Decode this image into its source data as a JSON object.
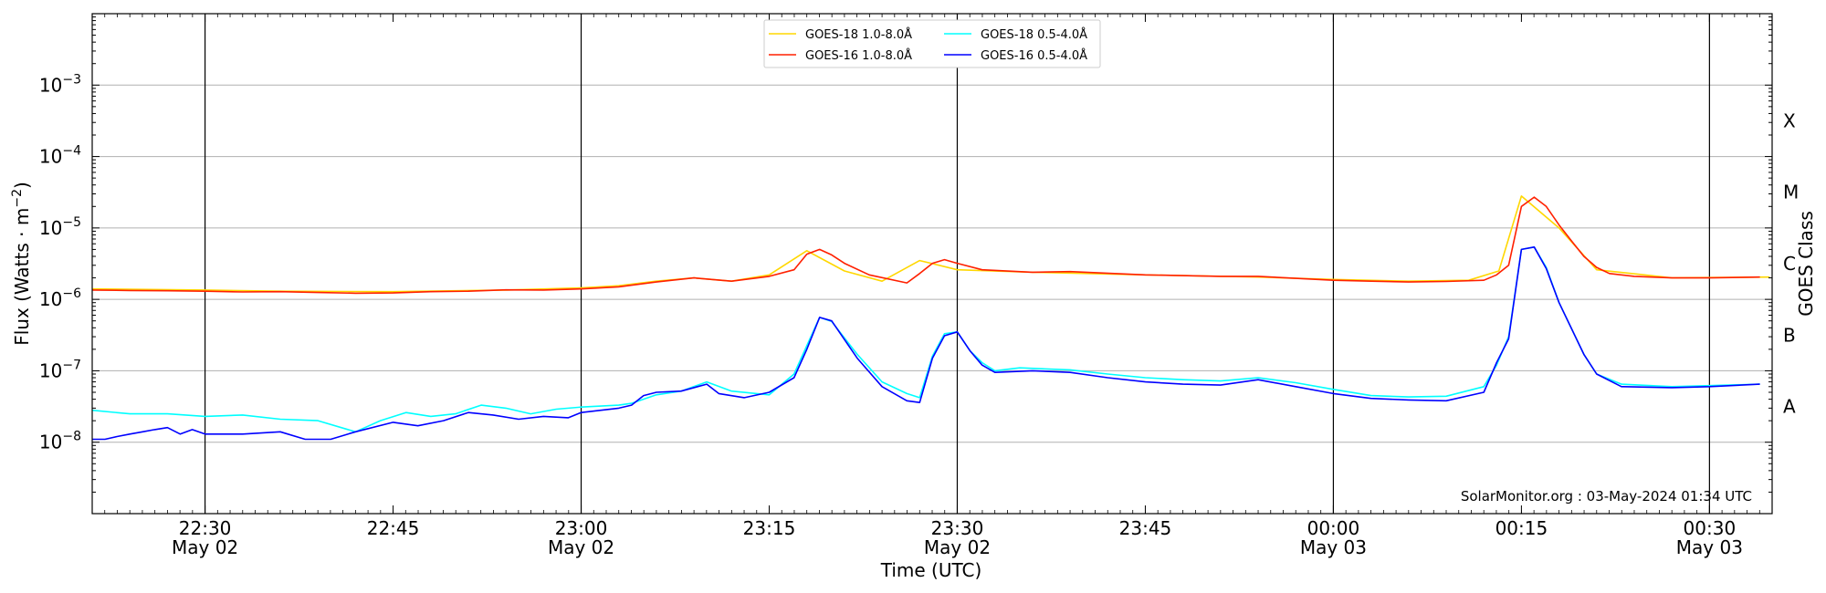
{
  "chart_data": {
    "type": "line",
    "xlabel": "Time (UTC)",
    "ylabel": "Flux (Watts · m",
    "ylabel_sup": "−2",
    "ylabel_close": ")",
    "right_label": "GOES Class",
    "footer": "SolarMonitor.org : 03-May-2024 01:34 UTC",
    "y_log": true,
    "ylim": [
      1e-09,
      0.01
    ],
    "xlim": [
      22.35,
      24.5833
    ],
    "grid": "horizontal",
    "legend_position": "top-center",
    "x_ticks": [
      {
        "t": 22.5,
        "l1": "22:30",
        "l2": "May 02",
        "vline": true
      },
      {
        "t": 22.75,
        "l1": "22:45",
        "l2": "",
        "vline": false
      },
      {
        "t": 23.0,
        "l1": "23:00",
        "l2": "May 02",
        "vline": true
      },
      {
        "t": 23.25,
        "l1": "23:15",
        "l2": "",
        "vline": false
      },
      {
        "t": 23.5,
        "l1": "23:30",
        "l2": "May 02",
        "vline": true
      },
      {
        "t": 23.75,
        "l1": "23:45",
        "l2": "",
        "vline": false
      },
      {
        "t": 24.0,
        "l1": "00:00",
        "l2": "May 03",
        "vline": true
      },
      {
        "t": 24.25,
        "l1": "00:15",
        "l2": "",
        "vline": false
      },
      {
        "t": 24.5,
        "l1": "00:30",
        "l2": "May 03",
        "vline": true
      }
    ],
    "y_ticks": [
      {
        "exp": -8,
        "label": "10",
        "sup": "−8"
      },
      {
        "exp": -7,
        "label": "10",
        "sup": "−7"
      },
      {
        "exp": -6,
        "label": "10",
        "sup": "−6"
      },
      {
        "exp": -5,
        "label": "10",
        "sup": "−5"
      },
      {
        "exp": -4,
        "label": "10",
        "sup": "−4"
      },
      {
        "exp": -3,
        "label": "10",
        "sup": "−3"
      }
    ],
    "classes": [
      {
        "label": "A",
        "exp": -7.5
      },
      {
        "label": "B",
        "exp": -6.5
      },
      {
        "label": "C",
        "exp": -5.5
      },
      {
        "label": "M",
        "exp": -4.5
      },
      {
        "label": "X",
        "exp": -3.5
      }
    ],
    "series": [
      {
        "name": "GOES-18 1.0-8.0Å",
        "color": "#ffd700",
        "points": [
          [
            22.35,
            1.4e-06
          ],
          [
            22.5,
            1.35e-06
          ],
          [
            22.6,
            1.3e-06
          ],
          [
            22.75,
            1.28e-06
          ],
          [
            22.9,
            1.35e-06
          ],
          [
            23.0,
            1.45e-06
          ],
          [
            23.05,
            1.55e-06
          ],
          [
            23.1,
            1.8e-06
          ],
          [
            23.15,
            2e-06
          ],
          [
            23.2,
            1.8e-06
          ],
          [
            23.25,
            2.2e-06
          ],
          [
            23.3,
            4.8e-06
          ],
          [
            23.35,
            2.5e-06
          ],
          [
            23.4,
            1.8e-06
          ],
          [
            23.45,
            3.5e-06
          ],
          [
            23.5,
            2.6e-06
          ],
          [
            23.6,
            2.4e-06
          ],
          [
            23.75,
            2.2e-06
          ],
          [
            23.9,
            2.05e-06
          ],
          [
            24.0,
            1.9e-06
          ],
          [
            24.1,
            1.8e-06
          ],
          [
            24.18,
            1.85e-06
          ],
          [
            24.22,
            2.5e-06
          ],
          [
            24.25,
            2.8e-05
          ],
          [
            24.3,
            1e-05
          ],
          [
            24.35,
            2.6e-06
          ],
          [
            24.45,
            2e-06
          ],
          [
            24.58,
            2.05e-06
          ]
        ]
      },
      {
        "name": "GOES-16 1.0-8.0Å",
        "color": "#ff2000",
        "points": [
          [
            22.35,
            1.35e-06
          ],
          [
            22.4,
            1.33e-06
          ],
          [
            22.45,
            1.32e-06
          ],
          [
            22.5,
            1.3e-06
          ],
          [
            22.55,
            1.27e-06
          ],
          [
            22.6,
            1.28e-06
          ],
          [
            22.65,
            1.25e-06
          ],
          [
            22.7,
            1.22e-06
          ],
          [
            22.75,
            1.23e-06
          ],
          [
            22.8,
            1.28e-06
          ],
          [
            22.85,
            1.3e-06
          ],
          [
            22.9,
            1.36e-06
          ],
          [
            22.95,
            1.35e-06
          ],
          [
            23.0,
            1.4e-06
          ],
          [
            23.05,
            1.5e-06
          ],
          [
            23.1,
            1.75e-06
          ],
          [
            23.15,
            2e-06
          ],
          [
            23.2,
            1.8e-06
          ],
          [
            23.25,
            2.1e-06
          ],
          [
            23.283,
            2.6e-06
          ],
          [
            23.3,
            4.3e-06
          ],
          [
            23.317,
            5e-06
          ],
          [
            23.333,
            4.2e-06
          ],
          [
            23.35,
            3.2e-06
          ],
          [
            23.383,
            2.2e-06
          ],
          [
            23.433,
            1.7e-06
          ],
          [
            23.45,
            2.3e-06
          ],
          [
            23.467,
            3.2e-06
          ],
          [
            23.483,
            3.6e-06
          ],
          [
            23.5,
            3.2e-06
          ],
          [
            23.533,
            2.6e-06
          ],
          [
            23.6,
            2.4e-06
          ],
          [
            23.65,
            2.45e-06
          ],
          [
            23.75,
            2.2e-06
          ],
          [
            23.85,
            2.1e-06
          ],
          [
            23.9,
            2.1e-06
          ],
          [
            24.0,
            1.85e-06
          ],
          [
            24.05,
            1.8e-06
          ],
          [
            24.1,
            1.75e-06
          ],
          [
            24.15,
            1.78e-06
          ],
          [
            24.2,
            1.85e-06
          ],
          [
            24.217,
            2.2e-06
          ],
          [
            24.233,
            3e-06
          ],
          [
            24.25,
            2e-05
          ],
          [
            24.267,
            2.7e-05
          ],
          [
            24.283,
            2e-05
          ],
          [
            24.3,
            1.1e-05
          ],
          [
            24.317,
            6.5e-06
          ],
          [
            24.333,
            4e-06
          ],
          [
            24.35,
            2.8e-06
          ],
          [
            24.367,
            2.3e-06
          ],
          [
            24.4,
            2.1e-06
          ],
          [
            24.45,
            2e-06
          ],
          [
            24.5,
            2e-06
          ],
          [
            24.567,
            2.05e-06
          ]
        ]
      },
      {
        "name": "GOES-18 0.5-4.0Å",
        "color": "#00ffff",
        "points": [
          [
            22.35,
            2.8e-08
          ],
          [
            22.4,
            2.5e-08
          ],
          [
            22.45,
            2.5e-08
          ],
          [
            22.5,
            2.3e-08
          ],
          [
            22.55,
            2.4e-08
          ],
          [
            22.6,
            2.1e-08
          ],
          [
            22.65,
            2e-08
          ],
          [
            22.7,
            1.4e-08
          ],
          [
            22.733,
            2e-08
          ],
          [
            22.767,
            2.6e-08
          ],
          [
            22.8,
            2.3e-08
          ],
          [
            22.833,
            2.5e-08
          ],
          [
            22.867,
            3.3e-08
          ],
          [
            22.9,
            3e-08
          ],
          [
            22.933,
            2.5e-08
          ],
          [
            22.967,
            2.9e-08
          ],
          [
            23.0,
            3.1e-08
          ],
          [
            23.05,
            3.3e-08
          ],
          [
            23.067,
            3.5e-08
          ],
          [
            23.1,
            4.6e-08
          ],
          [
            23.133,
            5.2e-08
          ],
          [
            23.167,
            7e-08
          ],
          [
            23.2,
            5.2e-08
          ],
          [
            23.25,
            4.6e-08
          ],
          [
            23.283,
            9e-08
          ],
          [
            23.317,
            5.6e-07
          ],
          [
            23.333,
            4.9e-07
          ],
          [
            23.367,
            1.7e-07
          ],
          [
            23.4,
            7e-08
          ],
          [
            23.433,
            4.8e-08
          ],
          [
            23.45,
            4.2e-08
          ],
          [
            23.467,
            1.6e-07
          ],
          [
            23.483,
            3.3e-07
          ],
          [
            23.5,
            3.5e-07
          ],
          [
            23.517,
            1.9e-07
          ],
          [
            23.533,
            1.3e-07
          ],
          [
            23.55,
            1e-07
          ],
          [
            23.583,
            1.1e-07
          ],
          [
            23.65,
            1.03e-07
          ],
          [
            23.7,
            9e-08
          ],
          [
            23.75,
            8e-08
          ],
          [
            23.8,
            7.5e-08
          ],
          [
            23.85,
            7.2e-08
          ],
          [
            23.9,
            8e-08
          ],
          [
            23.95,
            6.8e-08
          ],
          [
            24.0,
            5.5e-08
          ],
          [
            24.05,
            4.5e-08
          ],
          [
            24.1,
            4.3e-08
          ],
          [
            24.15,
            4.4e-08
          ],
          [
            24.2,
            6e-08
          ],
          [
            24.217,
            1.2e-07
          ],
          [
            24.233,
            3e-07
          ],
          [
            24.25,
            5e-06
          ],
          [
            24.267,
            5.4e-06
          ],
          [
            24.283,
            2.8e-06
          ],
          [
            24.3,
            9e-07
          ],
          [
            24.333,
            1.7e-07
          ],
          [
            24.35,
            9e-08
          ],
          [
            24.383,
            6.5e-08
          ],
          [
            24.45,
            6e-08
          ],
          [
            24.5,
            6.2e-08
          ],
          [
            24.567,
            6.5e-08
          ]
        ]
      },
      {
        "name": "GOES-16 0.5-4.0Å",
        "color": "#0000ff",
        "points": [
          [
            22.35,
            1.1e-08
          ],
          [
            22.367,
            1.1e-08
          ],
          [
            22.383,
            1.2e-08
          ],
          [
            22.4,
            1.3e-08
          ],
          [
            22.417,
            1.4e-08
          ],
          [
            22.433,
            1.5e-08
          ],
          [
            22.45,
            1.6e-08
          ],
          [
            22.467,
            1.3e-08
          ],
          [
            22.483,
            1.5e-08
          ],
          [
            22.5,
            1.3e-08
          ],
          [
            22.55,
            1.3e-08
          ],
          [
            22.6,
            1.4e-08
          ],
          [
            22.633,
            1.1e-08
          ],
          [
            22.667,
            1.1e-08
          ],
          [
            22.7,
            1.4e-08
          ],
          [
            22.75,
            1.9e-08
          ],
          [
            22.783,
            1.7e-08
          ],
          [
            22.817,
            2e-08
          ],
          [
            22.85,
            2.6e-08
          ],
          [
            22.883,
            2.4e-08
          ],
          [
            22.917,
            2.1e-08
          ],
          [
            22.95,
            2.3e-08
          ],
          [
            22.983,
            2.2e-08
          ],
          [
            23.0,
            2.6e-08
          ],
          [
            23.05,
            3e-08
          ],
          [
            23.067,
            3.3e-08
          ],
          [
            23.083,
            4.5e-08
          ],
          [
            23.1,
            5e-08
          ],
          [
            23.133,
            5.2e-08
          ],
          [
            23.167,
            6.5e-08
          ],
          [
            23.183,
            4.8e-08
          ],
          [
            23.217,
            4.2e-08
          ],
          [
            23.25,
            5e-08
          ],
          [
            23.283,
            8e-08
          ],
          [
            23.3,
            2e-07
          ],
          [
            23.317,
            5.6e-07
          ],
          [
            23.333,
            5e-07
          ],
          [
            23.367,
            1.5e-07
          ],
          [
            23.4,
            6e-08
          ],
          [
            23.433,
            3.8e-08
          ],
          [
            23.45,
            3.6e-08
          ],
          [
            23.467,
            1.5e-07
          ],
          [
            23.483,
            3.1e-07
          ],
          [
            23.5,
            3.5e-07
          ],
          [
            23.517,
            1.9e-07
          ],
          [
            23.533,
            1.2e-07
          ],
          [
            23.55,
            9.5e-08
          ],
          [
            23.6,
            1e-07
          ],
          [
            23.65,
            9.5e-08
          ],
          [
            23.7,
            8e-08
          ],
          [
            23.75,
            7e-08
          ],
          [
            23.8,
            6.5e-08
          ],
          [
            23.85,
            6.3e-08
          ],
          [
            23.9,
            7.5e-08
          ],
          [
            23.95,
            6e-08
          ],
          [
            24.0,
            4.8e-08
          ],
          [
            24.05,
            4.1e-08
          ],
          [
            24.1,
            3.9e-08
          ],
          [
            24.15,
            3.8e-08
          ],
          [
            24.2,
            5e-08
          ],
          [
            24.217,
            1.3e-07
          ],
          [
            24.233,
            2.8e-07
          ],
          [
            24.25,
            5e-06
          ],
          [
            24.267,
            5.4e-06
          ],
          [
            24.283,
            2.7e-06
          ],
          [
            24.3,
            9e-07
          ],
          [
            24.333,
            1.7e-07
          ],
          [
            24.35,
            9e-08
          ],
          [
            24.383,
            6e-08
          ],
          [
            24.45,
            5.8e-08
          ],
          [
            24.5,
            6e-08
          ],
          [
            24.567,
            6.5e-08
          ]
        ]
      }
    ]
  }
}
